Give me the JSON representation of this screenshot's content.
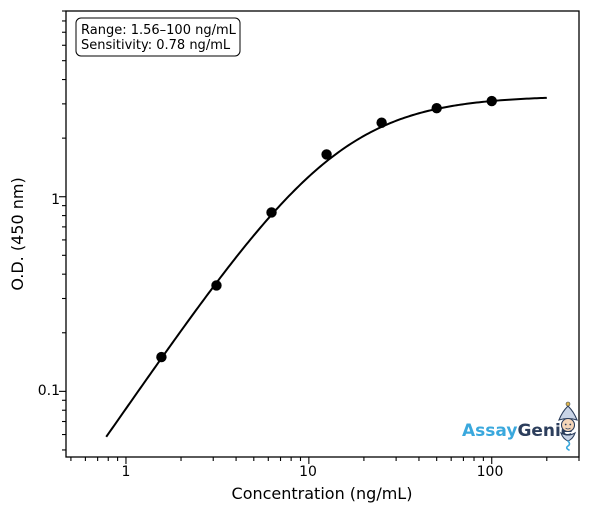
{
  "chart_data": {
    "type": "scatter",
    "title": "",
    "xlabel": "Concentration (ng/mL)",
    "ylabel": "O.D. (450 nm)",
    "x_scale": "log",
    "y_scale": "log",
    "xlim": [
      0.47,
      300
    ],
    "ylim": [
      0.046,
      9.0
    ],
    "grid": false,
    "x_tick_labels": [
      "1",
      "10",
      "100"
    ],
    "y_tick_labels": [
      "0.1",
      "1"
    ],
    "series": [
      {
        "kind": "points",
        "x": [
          1.5625,
          3.125,
          6.25,
          12.5,
          25,
          50,
          100
        ],
        "y": [
          0.15,
          0.35,
          0.83,
          1.65,
          2.4,
          2.85,
          3.1
        ]
      },
      {
        "kind": "fit-curve",
        "model": "4PL",
        "x_range": [
          0.78,
          200
        ],
        "params": {
          "A": 0.0015,
          "B": 1.4,
          "C": 14.0,
          "D": 3.3
        }
      }
    ],
    "annotation": {
      "line1": "Range: 1.56–100 ng/mL",
      "line2": "Sensitivity: 0.78 ng/mL",
      "placement": "top-left"
    },
    "colors": {
      "points": "#000000",
      "curve": "#000000",
      "axes": "#000000"
    }
  },
  "logo": {
    "text_part1": "Assay",
    "text_part2": "Genie",
    "color_part1": "#3aa8dd",
    "color_part2": "#2c3e5c",
    "icon": "genie-mascot-icon"
  }
}
